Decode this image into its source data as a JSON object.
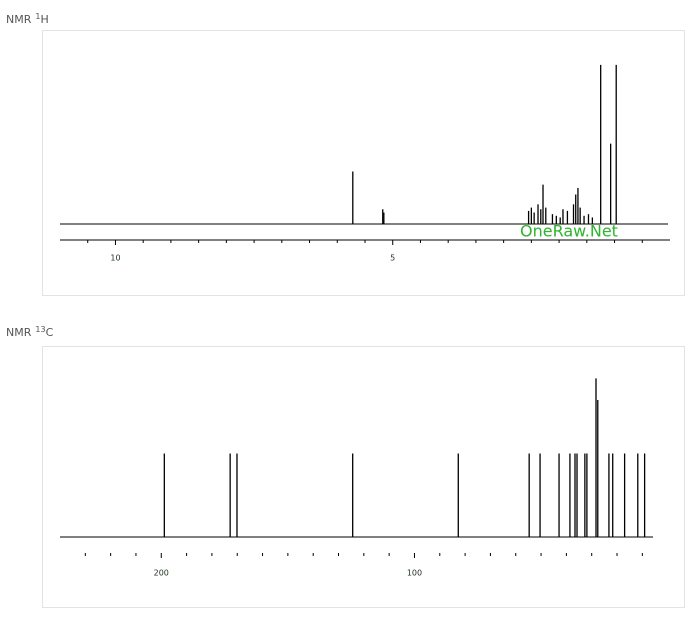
{
  "chart_data": [
    {
      "type": "spectrum",
      "title": "NMR",
      "title_superscript": "1",
      "title_element": "H",
      "watermark": "OneRaw.Net",
      "watermark_color": "#2db52d",
      "color": "#000000",
      "x": [
        5.72,
        5.18,
        5.16,
        2.55,
        2.5,
        2.45,
        2.38,
        2.33,
        2.29,
        2.24,
        2.12,
        2.05,
        1.98,
        1.93,
        1.85,
        1.74,
        1.7,
        1.66,
        1.62,
        1.55,
        1.47,
        1.4,
        1.25,
        1.07,
        0.97
      ],
      "values": [
        32,
        9,
        7,
        8,
        10,
        7,
        12,
        9,
        24,
        10,
        6,
        5,
        4,
        9,
        8,
        12,
        18,
        22,
        10,
        5,
        6,
        4,
        97,
        49,
        97
      ],
      "xlim": [
        11,
        0
      ],
      "ylim": [
        0,
        100
      ],
      "xticks": [
        10,
        5
      ],
      "minor_xticks": [
        10.5,
        9.5,
        9,
        8.5,
        8,
        7.5,
        7,
        6.5,
        6,
        5.5,
        4.5,
        4,
        3.5,
        3,
        2.5,
        2,
        1.5,
        1,
        0.5
      ]
    },
    {
      "type": "spectrum",
      "title": "NMR",
      "title_superscript": "13",
      "title_element": "C",
      "color": "#000000",
      "x": [
        198.8,
        172.8,
        170.1,
        124.4,
        82.7,
        54.7,
        50.4,
        42.9,
        38.6,
        36.6,
        35.8,
        32.7,
        31.9,
        28.3,
        27.6,
        23.2,
        21.7,
        17.0,
        11.8,
        9.1
      ],
      "values": [
        50,
        50,
        50,
        50,
        50,
        50,
        50,
        50,
        50,
        50,
        50,
        50,
        50,
        95,
        82,
        50,
        50,
        50,
        50,
        50
      ],
      "xlim": [
        240,
        5
      ],
      "ylim": [
        0,
        100
      ],
      "xticks": [
        200,
        100
      ],
      "minor_xticks": [
        230,
        220,
        210,
        190,
        180,
        170,
        160,
        150,
        140,
        130,
        120,
        110,
        90,
        80,
        70,
        60,
        50,
        40,
        30,
        20,
        10
      ]
    }
  ]
}
